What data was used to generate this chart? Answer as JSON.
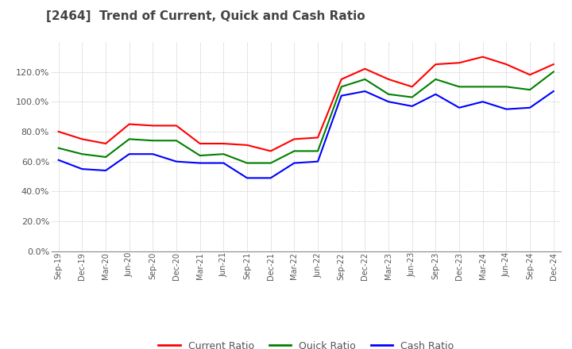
{
  "title": "[2464]  Trend of Current, Quick and Cash Ratio",
  "x_labels": [
    "Sep-19",
    "Dec-19",
    "Mar-20",
    "Jun-20",
    "Sep-20",
    "Dec-20",
    "Mar-21",
    "Jun-21",
    "Sep-21",
    "Dec-21",
    "Mar-22",
    "Jun-22",
    "Sep-22",
    "Dec-22",
    "Mar-23",
    "Jun-23",
    "Sep-23",
    "Dec-23",
    "Mar-24",
    "Jun-24",
    "Sep-24",
    "Dec-24"
  ],
  "current_ratio": [
    80.0,
    75.0,
    72.0,
    85.0,
    84.0,
    84.0,
    72.0,
    72.0,
    71.0,
    67.0,
    75.0,
    76.0,
    115.0,
    122.0,
    115.0,
    110.0,
    125.0,
    126.0,
    130.0,
    125.0,
    118.0,
    125.0
  ],
  "quick_ratio": [
    69.0,
    65.0,
    63.0,
    75.0,
    74.0,
    74.0,
    64.0,
    65.0,
    59.0,
    59.0,
    67.0,
    67.0,
    110.0,
    115.0,
    105.0,
    103.0,
    115.0,
    110.0,
    110.0,
    110.0,
    108.0,
    120.0
  ],
  "cash_ratio": [
    61.0,
    55.0,
    54.0,
    65.0,
    65.0,
    60.0,
    59.0,
    59.0,
    49.0,
    49.0,
    59.0,
    60.0,
    104.0,
    107.0,
    100.0,
    97.0,
    105.0,
    96.0,
    100.0,
    95.0,
    96.0,
    107.0
  ],
  "current_color": "#ff0000",
  "quick_color": "#008000",
  "cash_color": "#0000ff",
  "ylim": [
    0,
    140
  ],
  "yticks": [
    0,
    20,
    40,
    60,
    80,
    100,
    120
  ],
  "background_color": "#ffffff",
  "grid_color": "#b0b0b0"
}
